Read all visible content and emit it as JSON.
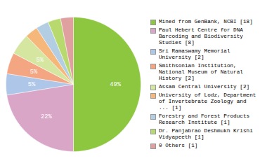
{
  "chart_data": {
    "type": "pie",
    "categories": [
      "Mined from GenBank, NCBI [18]",
      "Paul Hebert Centre for DNA\nBarcoding and Biodiversity\nStudies [8]",
      "Sri Ramaswamy Memorial\nUniversity [2]",
      "Smithsonian Institution,\nNational Museum of Natural\nHistory [2]",
      "Assam Central University [2]",
      "University of Lodz, Department\nof Invertebrate Zoology and\n... [1]",
      "Forestry and Forest Products\nResearch Institute [1]",
      "Dr. Panjabrao Deshmukh Krishi\nVidyapeeth [1]",
      "0 Others [1]"
    ],
    "values": [
      49,
      22,
      5,
      5,
      5,
      3,
      3,
      3,
      3
    ],
    "value_labels": [
      "49%",
      "22%",
      "5%",
      "5%",
      "5%",
      null,
      null,
      null,
      null
    ],
    "colors": [
      "#8dc63f",
      "#d9a6c8",
      "#aec6e8",
      "#f4a582",
      "#d4e6a0",
      "#f5b87a",
      "#b3cde3",
      "#b8d96e",
      "#e0a0a0"
    ],
    "data_labels": true,
    "legend": "right"
  }
}
